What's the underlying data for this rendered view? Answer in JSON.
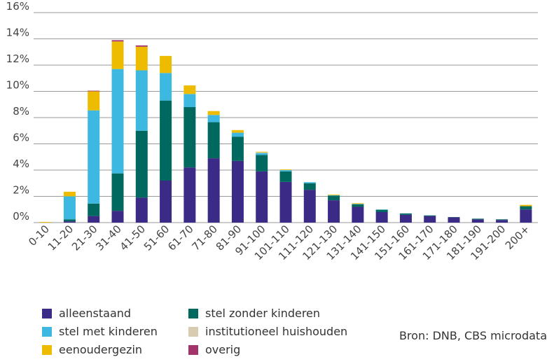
{
  "chart_data": {
    "type": "bar",
    "stacked": true,
    "categories": [
      "0-10",
      "11-20",
      "21-30",
      "31-40",
      "41-50",
      "51-60",
      "61-70",
      "71-80",
      "81-90",
      "91-100",
      "101-110",
      "111-120",
      "121-130",
      "131-140",
      "141-150",
      "151-160",
      "161-170",
      "171-180",
      "181-190",
      "191-200",
      "200+"
    ],
    "ylim": [
      0,
      16
    ],
    "yticks": [
      0,
      2,
      4,
      6,
      8,
      10,
      12,
      14,
      16
    ],
    "ytick_labels": [
      "0%",
      "2%",
      "4%",
      "6%",
      "8%",
      "10%",
      "12%",
      "14%",
      "16%"
    ],
    "grid": true,
    "legend_position": "bottom",
    "series": [
      {
        "name": "alleenstaand",
        "color": "#3b2a86",
        "values": [
          0.0,
          0.1,
          0.5,
          0.9,
          1.9,
          3.2,
          4.2,
          4.9,
          4.7,
          3.9,
          3.1,
          2.5,
          1.7,
          1.2,
          0.8,
          0.6,
          0.5,
          0.4,
          0.25,
          0.2,
          1.0
        ]
      },
      {
        "name": "stel zonder kinderen",
        "color": "#00695f",
        "values": [
          0.0,
          0.15,
          0.95,
          2.85,
          5.1,
          6.1,
          4.6,
          2.75,
          1.85,
          1.25,
          0.8,
          0.5,
          0.35,
          0.2,
          0.18,
          0.1,
          0.05,
          0.02,
          0.05,
          0.05,
          0.25
        ]
      },
      {
        "name": "stel met kinderen",
        "color": "#3db8e0",
        "values": [
          0.0,
          1.75,
          7.1,
          7.95,
          4.6,
          2.1,
          1.0,
          0.55,
          0.3,
          0.15,
          0.1,
          0.08,
          0.03,
          0.03,
          0.02,
          0.0,
          0.0,
          0.0,
          0.0,
          0.0,
          0.0
        ]
      },
      {
        "name": "institutioneel huishouden",
        "color": "#d8ccb0",
        "values": [
          0.0,
          0.0,
          0.0,
          0.0,
          0.0,
          0.0,
          0.0,
          0.0,
          0.0,
          0.05,
          0.0,
          0.0,
          0.0,
          0.0,
          0.0,
          0.0,
          0.0,
          0.0,
          0.0,
          0.0,
          0.0
        ]
      },
      {
        "name": "eenoudergezin",
        "color": "#edbb00",
        "values": [
          0.05,
          0.35,
          1.45,
          2.1,
          1.8,
          1.3,
          0.65,
          0.3,
          0.2,
          0.05,
          0.05,
          0.0,
          0.05,
          0.05,
          0.0,
          0.0,
          0.0,
          0.0,
          0.0,
          0.0,
          0.1
        ]
      },
      {
        "name": "overig",
        "color": "#a3346b",
        "values": [
          0.0,
          0.0,
          0.05,
          0.1,
          0.1,
          0.0,
          0.0,
          0.0,
          0.0,
          0.0,
          0.0,
          0.0,
          0.0,
          0.0,
          0.0,
          0.0,
          0.0,
          0.0,
          0.0,
          0.0,
          0.0
        ]
      }
    ],
    "legend": [
      {
        "label": "alleenstaand",
        "color": "#3b2a86"
      },
      {
        "label": "stel zonder kinderen",
        "color": "#00695f"
      },
      {
        "label": "stel met kinderen",
        "color": "#3db8e0"
      },
      {
        "label": "institutioneel huishouden",
        "color": "#d8ccb0"
      },
      {
        "label": "eenoudergezin",
        "color": "#edbb00"
      },
      {
        "label": "overig",
        "color": "#a3346b"
      }
    ],
    "source": "Bron: DNB, CBS microdata"
  }
}
